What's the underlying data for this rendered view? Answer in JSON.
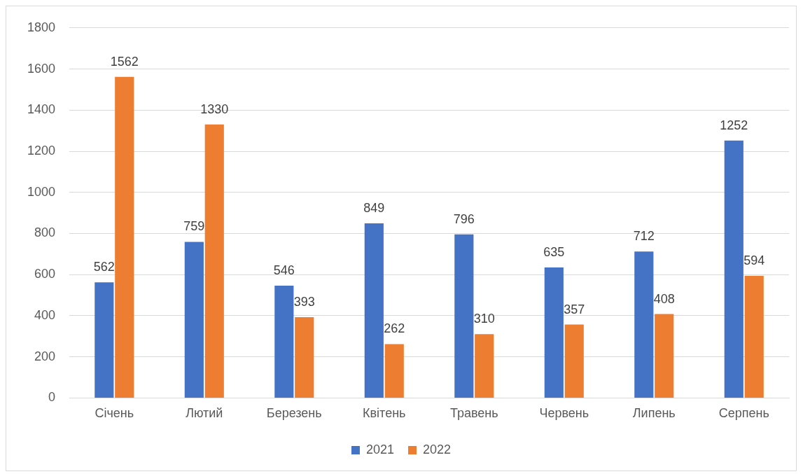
{
  "chart_data": {
    "type": "bar",
    "categories": [
      "Січень",
      "Лютий",
      "Березень",
      "Квітень",
      "Травень",
      "Червень",
      "Липень",
      "Серпень"
    ],
    "series": [
      {
        "name": "2021",
        "color": "#4472c4",
        "values": [
          562,
          759,
          546,
          849,
          796,
          635,
          712,
          1252
        ]
      },
      {
        "name": "2022",
        "color": "#ed7d31",
        "values": [
          1562,
          1330,
          393,
          262,
          310,
          357,
          408,
          594
        ]
      }
    ],
    "ylim": [
      0,
      1800
    ],
    "yticks": [
      0,
      200,
      400,
      600,
      800,
      1000,
      1200,
      1400,
      1600,
      1800
    ],
    "grid": "y",
    "legend": "bottom",
    "data_labels": true
  }
}
